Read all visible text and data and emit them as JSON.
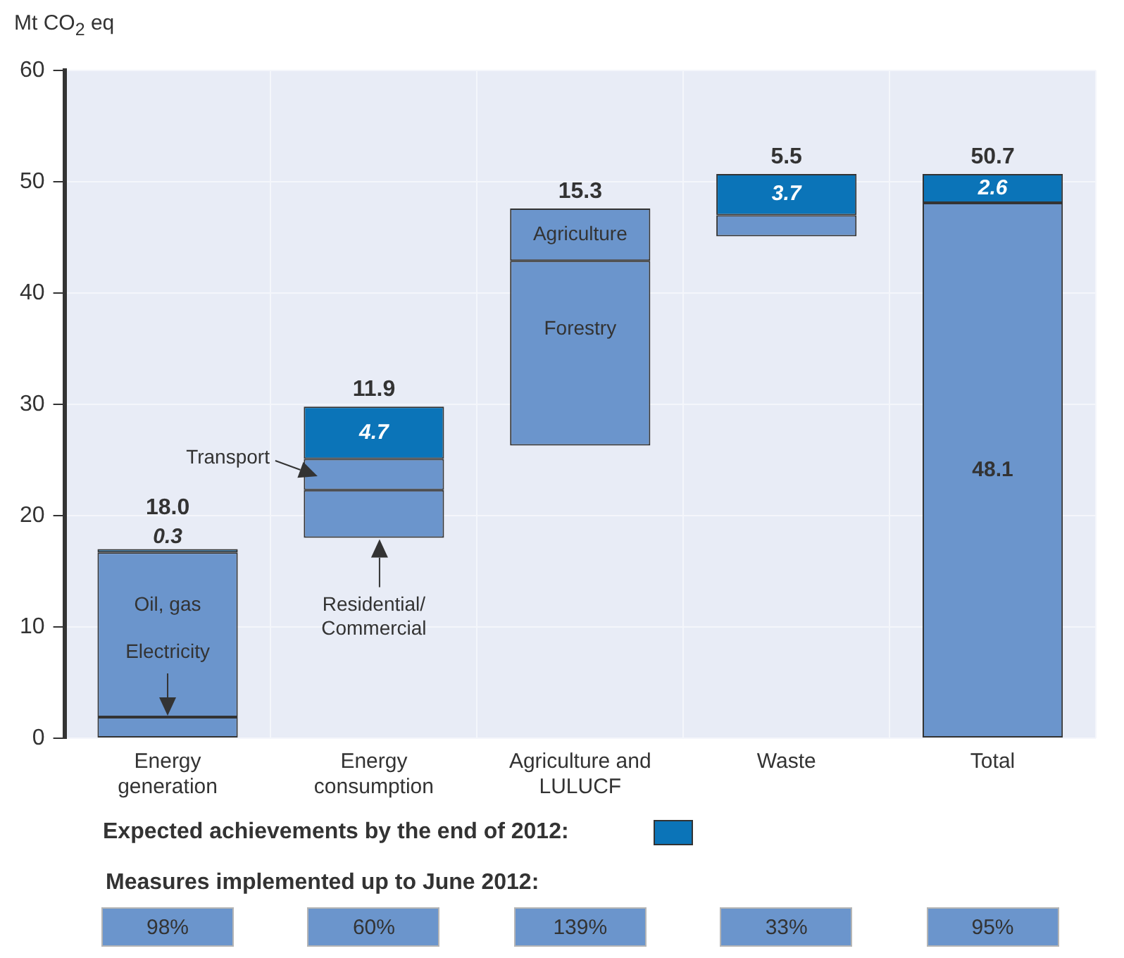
{
  "chart_data": {
    "type": "bar",
    "ylabel": "Mt CO$_{2}$ eq",
    "categories": [
      "Energy generation",
      "Energy consumption",
      "Agriculture and LULUCF",
      "Waste",
      "Total"
    ],
    "series": [
      {
        "color": "#6b95cc",
        "base": [
          0,
          18.0,
          26.3,
          45.1,
          0
        ],
        "values": [
          1.9,
          4.3,
          16.6,
          1.9,
          48.1
        ],
        "value_labels": [
          null,
          null,
          null,
          null,
          "48.1"
        ]
      },
      {
        "color": "#6b95cc",
        "base": [
          1.9,
          22.3,
          42.9,
          null,
          null
        ],
        "values": [
          14.8,
          2.8,
          4.7,
          null,
          null
        ]
      },
      {
        "name": "Expected achievements by the end of 2012:",
        "color": "#0b74b8",
        "base": [
          16.7,
          25.1,
          null,
          47.0,
          48.1
        ],
        "values": [
          0.3,
          4.7,
          null,
          3.7,
          2.6
        ],
        "value_labels": [
          "0.3",
          "4.7",
          null,
          "3.7",
          "2.6"
        ]
      }
    ],
    "ylim": [
      0,
      60
    ],
    "yticks": [
      0,
      10,
      20,
      30,
      40,
      50,
      60
    ],
    "grid": true,
    "legend": "bottom",
    "annotations": [
      "Oil, gas",
      "Electricity",
      "Transport",
      "Residential/Commercial",
      "Agriculture",
      "Forestry",
      "Measures implemented up to June 2012:",
      "98%",
      "60%",
      "139%",
      "33%",
      "95%",
      {
        "text": "18.0",
        "x": "Energy generation",
        "y": 17.0
      },
      {
        "text": "11.9",
        "x": "Energy consumption",
        "y": 29.8
      },
      {
        "text": "15.3",
        "x": "Agriculture and LULUCF",
        "y": 47.6
      },
      {
        "text": "5.5",
        "x": "Waste",
        "y": 50.7
      },
      {
        "text": "50.7",
        "x": "Total",
        "y": 50.7
      }
    ]
  }
}
